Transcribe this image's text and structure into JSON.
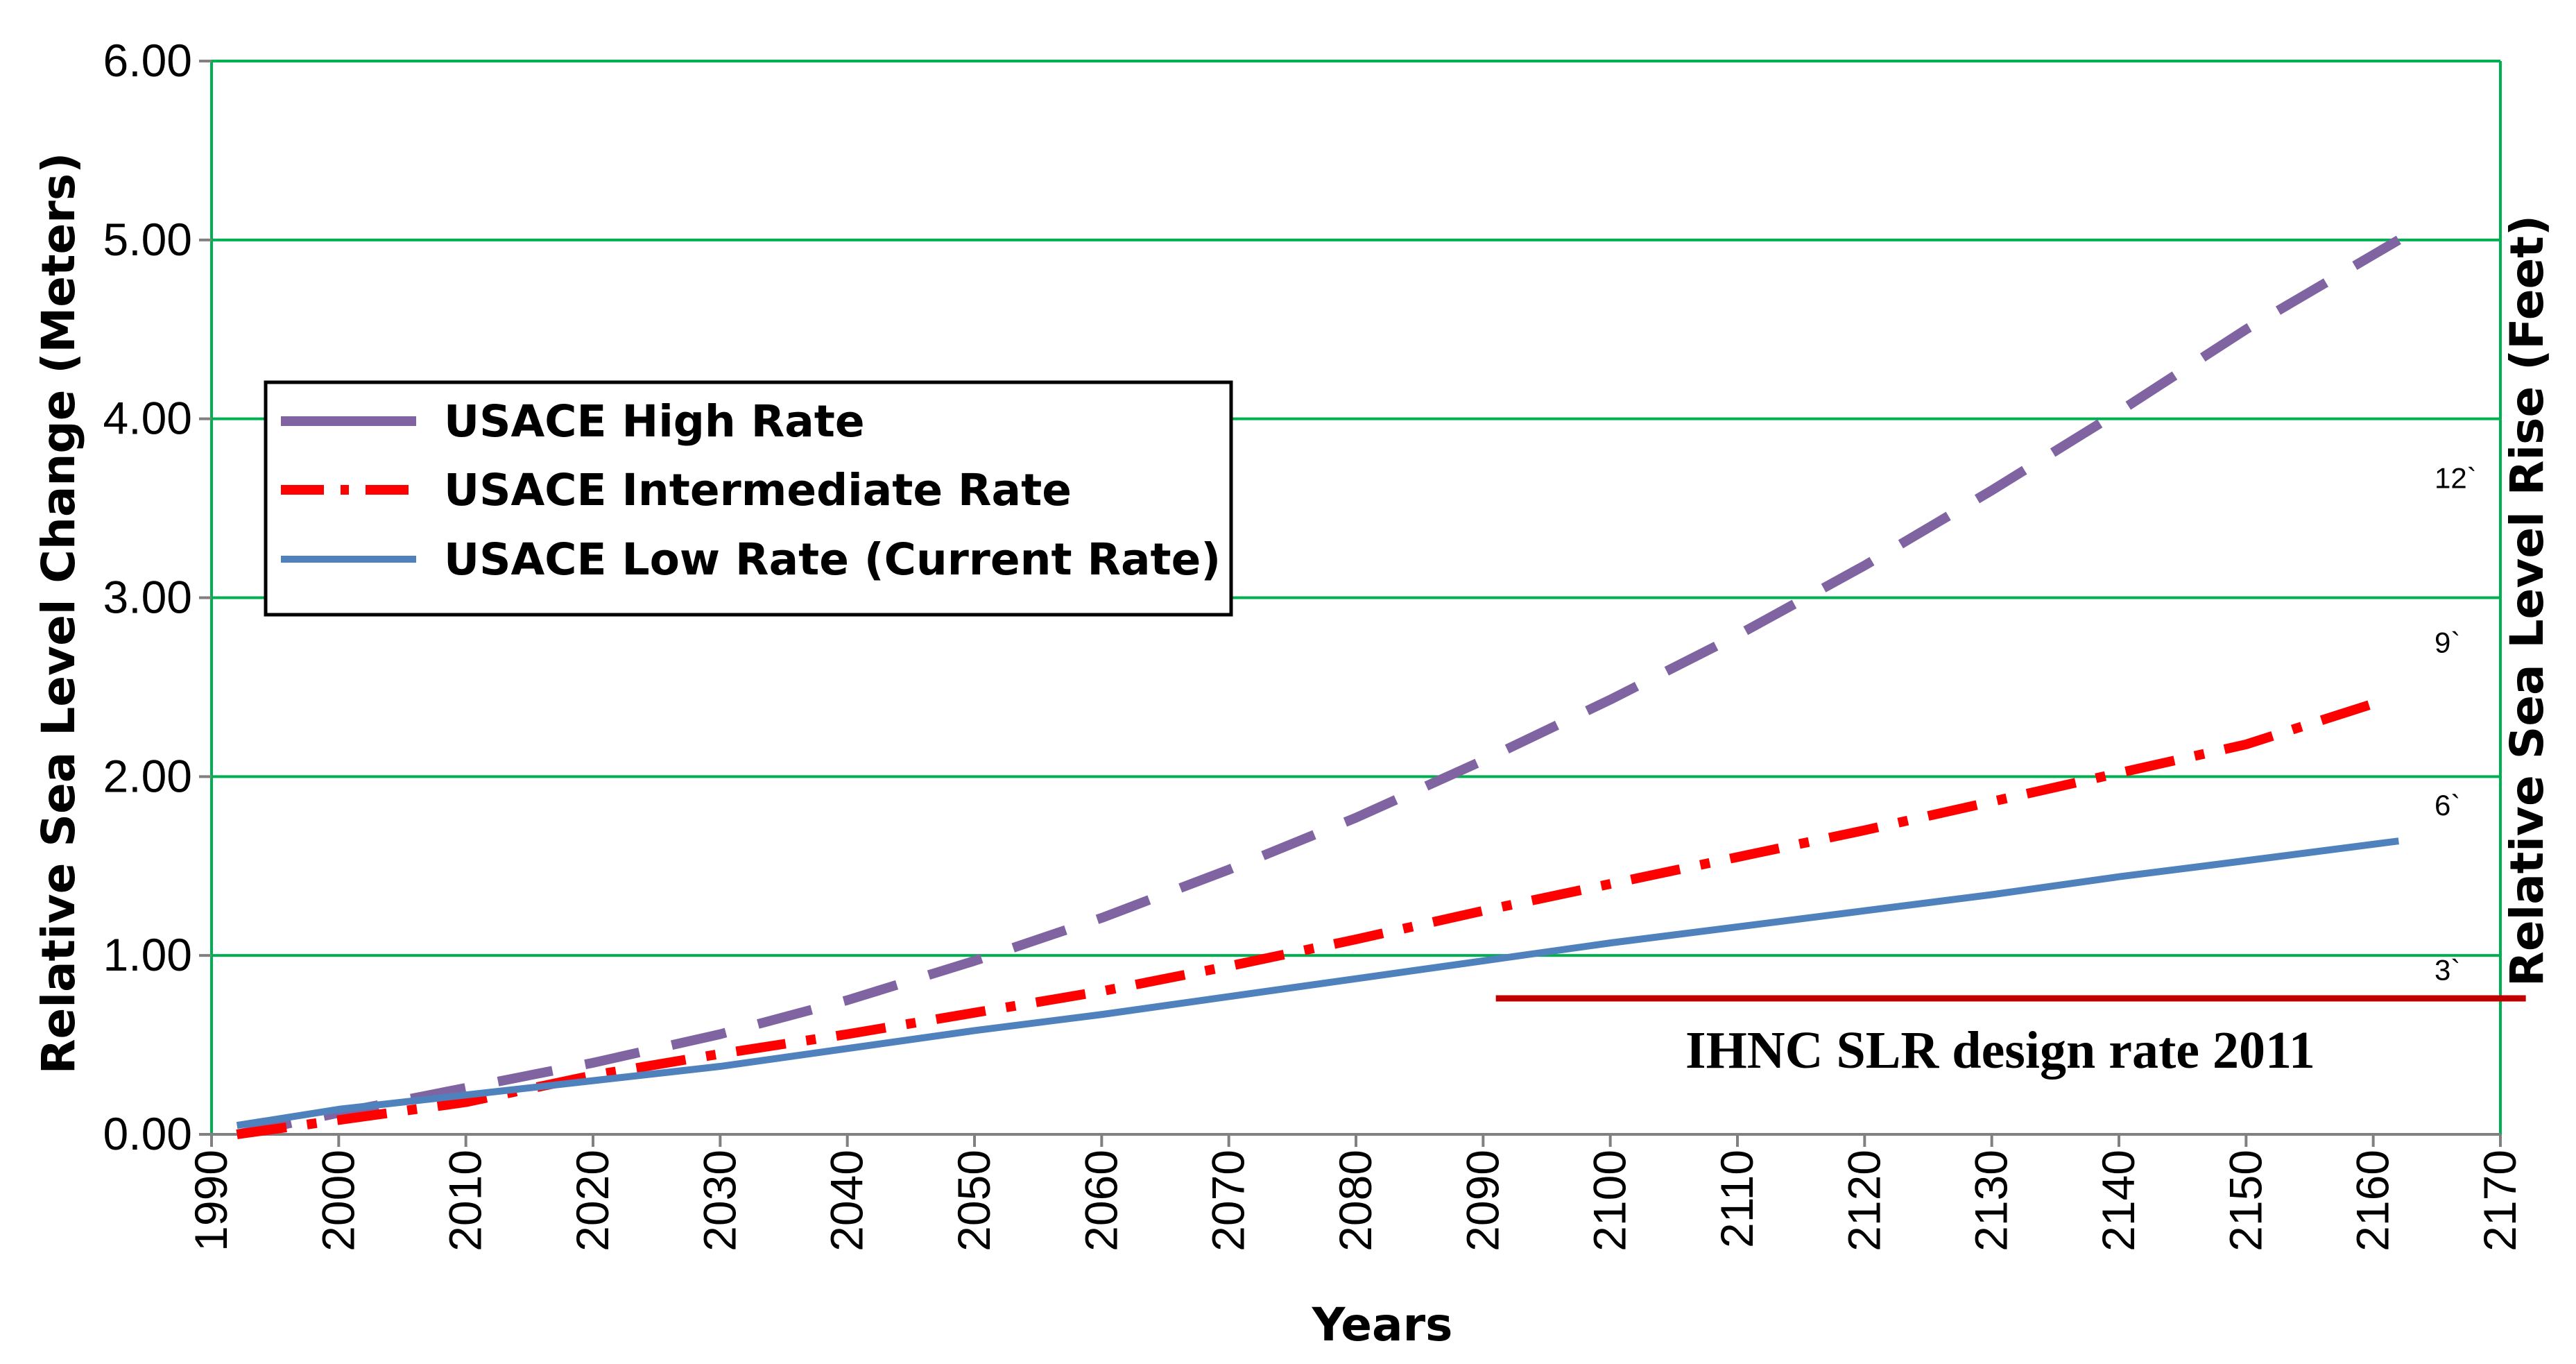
{
  "chart_data": {
    "type": "line",
    "title": "",
    "xlabel": "Years",
    "ylabel": "Relative Sea Level Change (Meters)",
    "y2label": "Relative Sea Level Rise (Feet)",
    "xlim": [
      1990,
      2170
    ],
    "ylim": [
      0,
      6
    ],
    "grid": true,
    "legend_position": "left",
    "x_ticks": [
      "1990",
      "2000",
      "2010",
      "2020",
      "2030",
      "2040",
      "2050",
      "2060",
      "2070",
      "2080",
      "2090",
      "2100",
      "2110",
      "2120",
      "2130",
      "2140",
      "2150",
      "2160",
      "2170"
    ],
    "y_ticks": [
      "0.00",
      "1.00",
      "2.00",
      "3.00",
      "4.00",
      "5.00",
      "6.00"
    ],
    "secondary_labels": [
      {
        "label": "3`",
        "value_m": 0.91
      },
      {
        "label": "6`",
        "value_m": 1.83
      },
      {
        "label": "9`",
        "value_m": 2.74
      },
      {
        "label": "12`",
        "value_m": 3.66
      }
    ],
    "series": [
      {
        "name": "USACE High Rate",
        "color": "#8064a2",
        "style": "dashed",
        "x": [
          1992,
          2000,
          2010,
          2020,
          2030,
          2040,
          2050,
          2060,
          2070,
          2080,
          2090,
          2100,
          2110,
          2120,
          2130,
          2140,
          2150,
          2162
        ],
        "y": [
          0.0,
          0.12,
          0.26,
          0.4,
          0.56,
          0.75,
          0.97,
          1.21,
          1.48,
          1.77,
          2.09,
          2.43,
          2.79,
          3.18,
          3.6,
          4.04,
          4.5,
          5.0
        ]
      },
      {
        "name": "USACE Intermediate Rate",
        "color": "#ff0000",
        "style": "dash-dot",
        "x": [
          1992,
          2000,
          2010,
          2020,
          2030,
          2040,
          2050,
          2060,
          2070,
          2080,
          2090,
          2100,
          2110,
          2120,
          2130,
          2140,
          2150,
          2161
        ],
        "y": [
          0.0,
          0.08,
          0.18,
          0.33,
          0.45,
          0.56,
          0.68,
          0.8,
          0.94,
          1.09,
          1.25,
          1.4,
          1.55,
          1.7,
          1.86,
          2.02,
          2.18,
          2.43
        ]
      },
      {
        "name": "USACE Low Rate (Current Rate)",
        "color": "#4f81bd",
        "style": "solid",
        "x": [
          1992,
          2000,
          2010,
          2020,
          2030,
          2040,
          2050,
          2060,
          2070,
          2080,
          2090,
          2100,
          2110,
          2120,
          2130,
          2140,
          2150,
          2162
        ],
        "y": [
          0.05,
          0.14,
          0.22,
          0.3,
          0.38,
          0.48,
          0.58,
          0.67,
          0.77,
          0.87,
          0.97,
          1.07,
          1.16,
          1.25,
          1.34,
          1.44,
          1.53,
          1.64
        ]
      }
    ],
    "design_rate": {
      "label": "IHNC SLR design rate 2011",
      "color": "#c00000",
      "x_start": 2091,
      "x_end": 2172,
      "value": 0.76
    }
  }
}
